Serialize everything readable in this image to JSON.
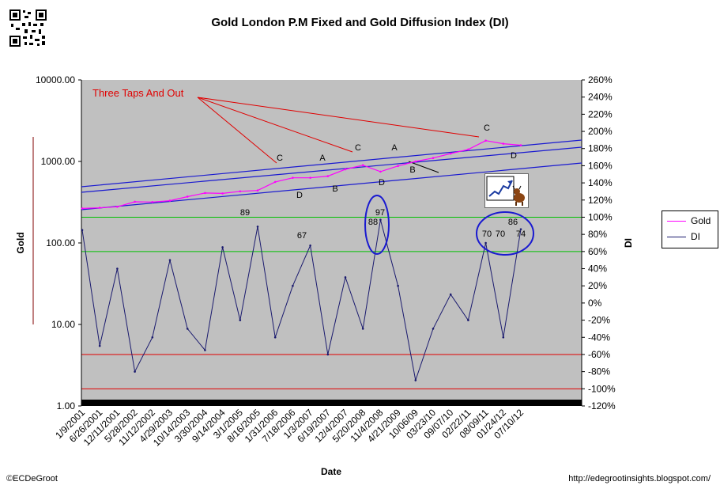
{
  "chart_data": {
    "type": "line",
    "title": "Gold London P.M Fixed and Gold Diffusion Index (DI)",
    "xlabel": "Date",
    "ylabel_left": "Gold",
    "ylabel_right": "DI",
    "y_left_scale": "log",
    "y_left_range": [
      1,
      10000
    ],
    "y_left_ticks": [
      "10000.00",
      "1000.00",
      "100.00",
      "10.00",
      "1.00"
    ],
    "y_right_range": [
      -120,
      260
    ],
    "y_right_ticks": [
      "260%",
      "240%",
      "220%",
      "200%",
      "180%",
      "160%",
      "140%",
      "120%",
      "100%",
      "80%",
      "60%",
      "40%",
      "20%",
      "0%",
      "-20%",
      "-40%",
      "-60%",
      "-80%",
      "-100%",
      "-120%"
    ],
    "x_tick_labels": [
      "1/9/2001",
      "6/26/2001",
      "12/11/2001",
      "5/28/2002",
      "11/12/2002",
      "4/29/2003",
      "10/14/2003",
      "3/30/2004",
      "9/14/2004",
      "3/1/2005",
      "8/16/2005",
      "1/31/2006",
      "7/18/2006",
      "1/3/2007",
      "6/19/2007",
      "12/4/2007",
      "5/20/2008",
      "11/4/2008",
      "4/21/2009",
      "10/06/09",
      "03/23/10",
      "09/07/10",
      "02/22/11",
      "08/09/11",
      "01/24/12",
      "07/10/12"
    ],
    "series": [
      {
        "name": "Gold",
        "color": "#ff00ff",
        "axis": "left",
        "x": [
          "1/9/2001",
          "6/26/2001",
          "12/11/2001",
          "5/28/2002",
          "11/12/2002",
          "4/29/2003",
          "10/14/2003",
          "3/30/2004",
          "9/14/2004",
          "3/1/2005",
          "8/16/2005",
          "1/31/2006",
          "7/18/2006",
          "1/3/2007",
          "6/19/2007",
          "12/4/2007",
          "5/20/2008",
          "11/4/2008",
          "4/21/2009",
          "10/06/09",
          "03/23/10",
          "09/07/10",
          "02/22/11",
          "08/09/11",
          "01/24/12",
          "07/10/12"
        ],
        "values": [
          265,
          270,
          278,
          320,
          318,
          330,
          370,
          410,
          405,
          430,
          440,
          560,
          630,
          630,
          660,
          800,
          900,
          750,
          880,
          1000,
          1100,
          1250,
          1400,
          1800,
          1650,
          1580
        ]
      },
      {
        "name": "DI",
        "color": "#1a1a6e",
        "axis": "right",
        "x": [
          "1/9/2001",
          "6/26/2001",
          "12/11/2001",
          "5/28/2002",
          "11/12/2002",
          "4/29/2003",
          "10/14/2003",
          "3/30/2004",
          "9/14/2004",
          "3/1/2005",
          "8/16/2005",
          "1/31/2006",
          "7/18/2006",
          "1/3/2007",
          "6/19/2007",
          "12/4/2007",
          "5/20/2008",
          "11/4/2008",
          "4/21/2009",
          "10/06/09",
          "03/23/10",
          "09/07/10",
          "02/22/11",
          "08/09/11",
          "01/24/12",
          "07/10/12"
        ],
        "values": [
          85,
          -50,
          40,
          -80,
          -40,
          50,
          -30,
          -55,
          65,
          -20,
          89,
          -40,
          20,
          67,
          -60,
          30,
          -30,
          97,
          20,
          -90,
          -30,
          10,
          -20,
          70,
          -40,
          86
        ]
      }
    ],
    "peak_labels": [
      "89",
      "67",
      "88",
      "97",
      "70",
      "70",
      "86",
      "74"
    ],
    "wave_labels": [
      "C",
      "A",
      "C",
      "A",
      "C",
      "D",
      "B",
      "D",
      "B",
      "D"
    ],
    "annotation_text": "Three Taps And Out",
    "hlines_right_axis": [
      {
        "value": 100,
        "color": "#00c000"
      },
      {
        "value": 60,
        "color": "#00c000"
      },
      {
        "value": -60,
        "color": "#e00000"
      },
      {
        "value": -100,
        "color": "#e00000"
      }
    ],
    "plot_background": "#c0c0c0",
    "legend": {
      "placement": "right",
      "entries": [
        "Gold",
        "DI"
      ]
    }
  },
  "credits": {
    "left": "©ECDeGroot",
    "right": "http://edegrootinsights.blogspot.com/"
  }
}
